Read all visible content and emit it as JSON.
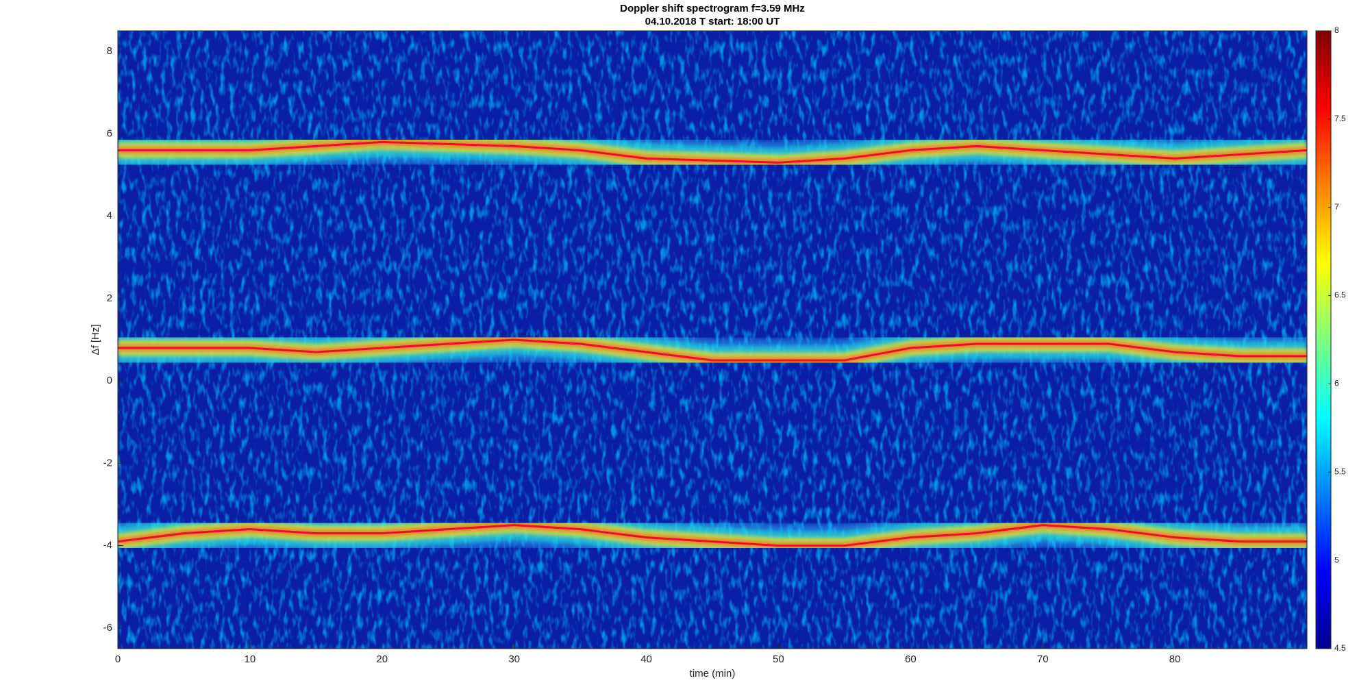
{
  "chart_data": {
    "type": "spectrogram",
    "title": "Doppler shift spectrogram f=3.59 MHz",
    "subtitle": "04.10.2018   T start: 18:00 UT",
    "x_label": "time (min)",
    "y_label": "Δf [Hz]",
    "colormap": "jet",
    "x": [
      0,
      5,
      10,
      15,
      20,
      25,
      30,
      35,
      40,
      45,
      50,
      55,
      60,
      65,
      70,
      75,
      80,
      85,
      90
    ],
    "series": [
      {
        "color": "#e8102a",
        "values": [
          5.6,
          5.6,
          5.6,
          5.7,
          5.8,
          5.75,
          5.7,
          5.6,
          5.4,
          5.35,
          5.3,
          5.4,
          5.6,
          5.7,
          5.6,
          5.5,
          5.4,
          5.5,
          5.6
        ]
      },
      {
        "color": "#e8102a",
        "values": [
          0.8,
          0.8,
          0.8,
          0.7,
          0.8,
          0.9,
          1.0,
          0.9,
          0.7,
          0.5,
          0.5,
          0.5,
          0.8,
          0.9,
          0.9,
          0.9,
          0.7,
          0.6,
          0.6
        ]
      },
      {
        "color": "#e8102a",
        "values": [
          -3.9,
          -3.7,
          -3.6,
          -3.7,
          -3.7,
          -3.6,
          -3.5,
          -3.6,
          -3.8,
          -3.9,
          -4.0,
          -4.0,
          -3.8,
          -3.7,
          -3.5,
          -3.6,
          -3.8,
          -3.9,
          -3.9
        ]
      }
    ],
    "xlim": [
      0,
      90
    ],
    "ylim": [
      -6.5,
      8.5
    ],
    "xticks": [
      0,
      10,
      20,
      30,
      40,
      50,
      60,
      70,
      80
    ],
    "yticks": [
      -6,
      -4,
      -2,
      0,
      2,
      4,
      6,
      8
    ],
    "clim": [
      4.5,
      8
    ],
    "cticks": [
      4.5,
      5,
      5.5,
      6,
      6.5,
      7,
      7.5,
      8
    ]
  }
}
